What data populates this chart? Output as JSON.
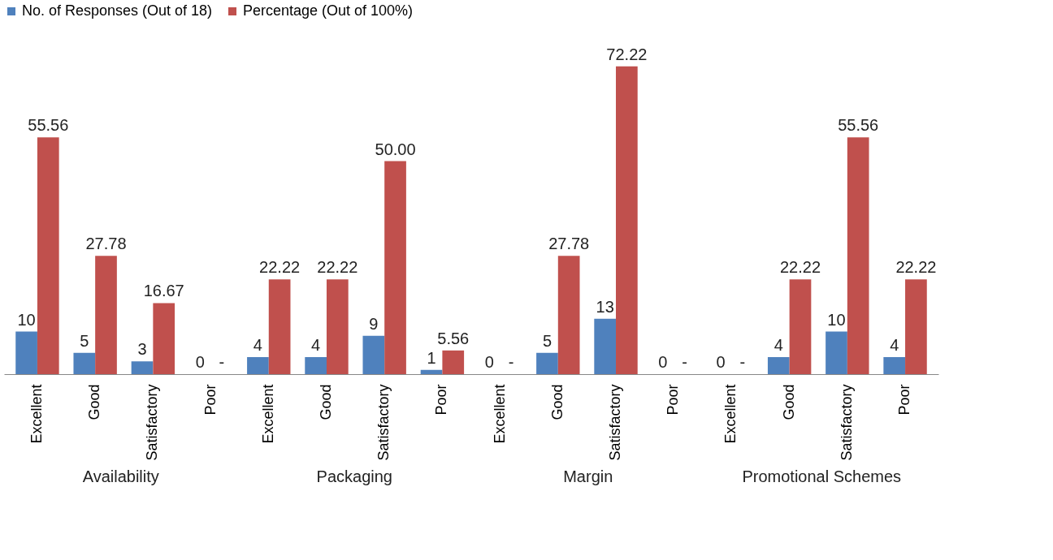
{
  "chart_data": {
    "type": "bar",
    "categories": [
      "Excellent",
      "Good",
      "Satisfactory",
      "Poor",
      "Excellent",
      "Good",
      "Satisfactory",
      "Poor",
      "Excellent",
      "Good",
      "Satisfactory",
      "Poor",
      "Excellent",
      "Good",
      "Satisfactory",
      "Poor"
    ],
    "series": [
      {
        "name": "No. of Responses  (Out of 18)",
        "color": "#4f81bd",
        "values": [
          10,
          5,
          3,
          0,
          4,
          4,
          9,
          1,
          0,
          5,
          13,
          0,
          0,
          4,
          10,
          4
        ],
        "value_labels": [
          "10",
          "5",
          "3",
          "0",
          "4",
          "4",
          "9",
          "1",
          "0",
          "5",
          "13",
          "0",
          "0",
          "4",
          "10",
          "4"
        ]
      },
      {
        "name": "Percentage (Out of 100%)",
        "color": "#c0504d",
        "values": [
          55.56,
          27.78,
          16.67,
          0,
          22.22,
          22.22,
          50.0,
          5.56,
          0,
          27.78,
          72.22,
          0,
          0,
          22.22,
          55.56,
          22.22
        ],
        "value_labels": [
          "55.56",
          "27.78",
          "16.67",
          "-",
          "22.22",
          "22.22",
          "50.00",
          "5.56",
          "-",
          "27.78",
          "72.22",
          "-",
          "-",
          "22.22",
          "55.56",
          "22.22"
        ]
      }
    ],
    "annotations": [
      "Availability",
      "Packaging",
      "Margin",
      "Promotional Schemes"
    ],
    "legend": "top"
  }
}
